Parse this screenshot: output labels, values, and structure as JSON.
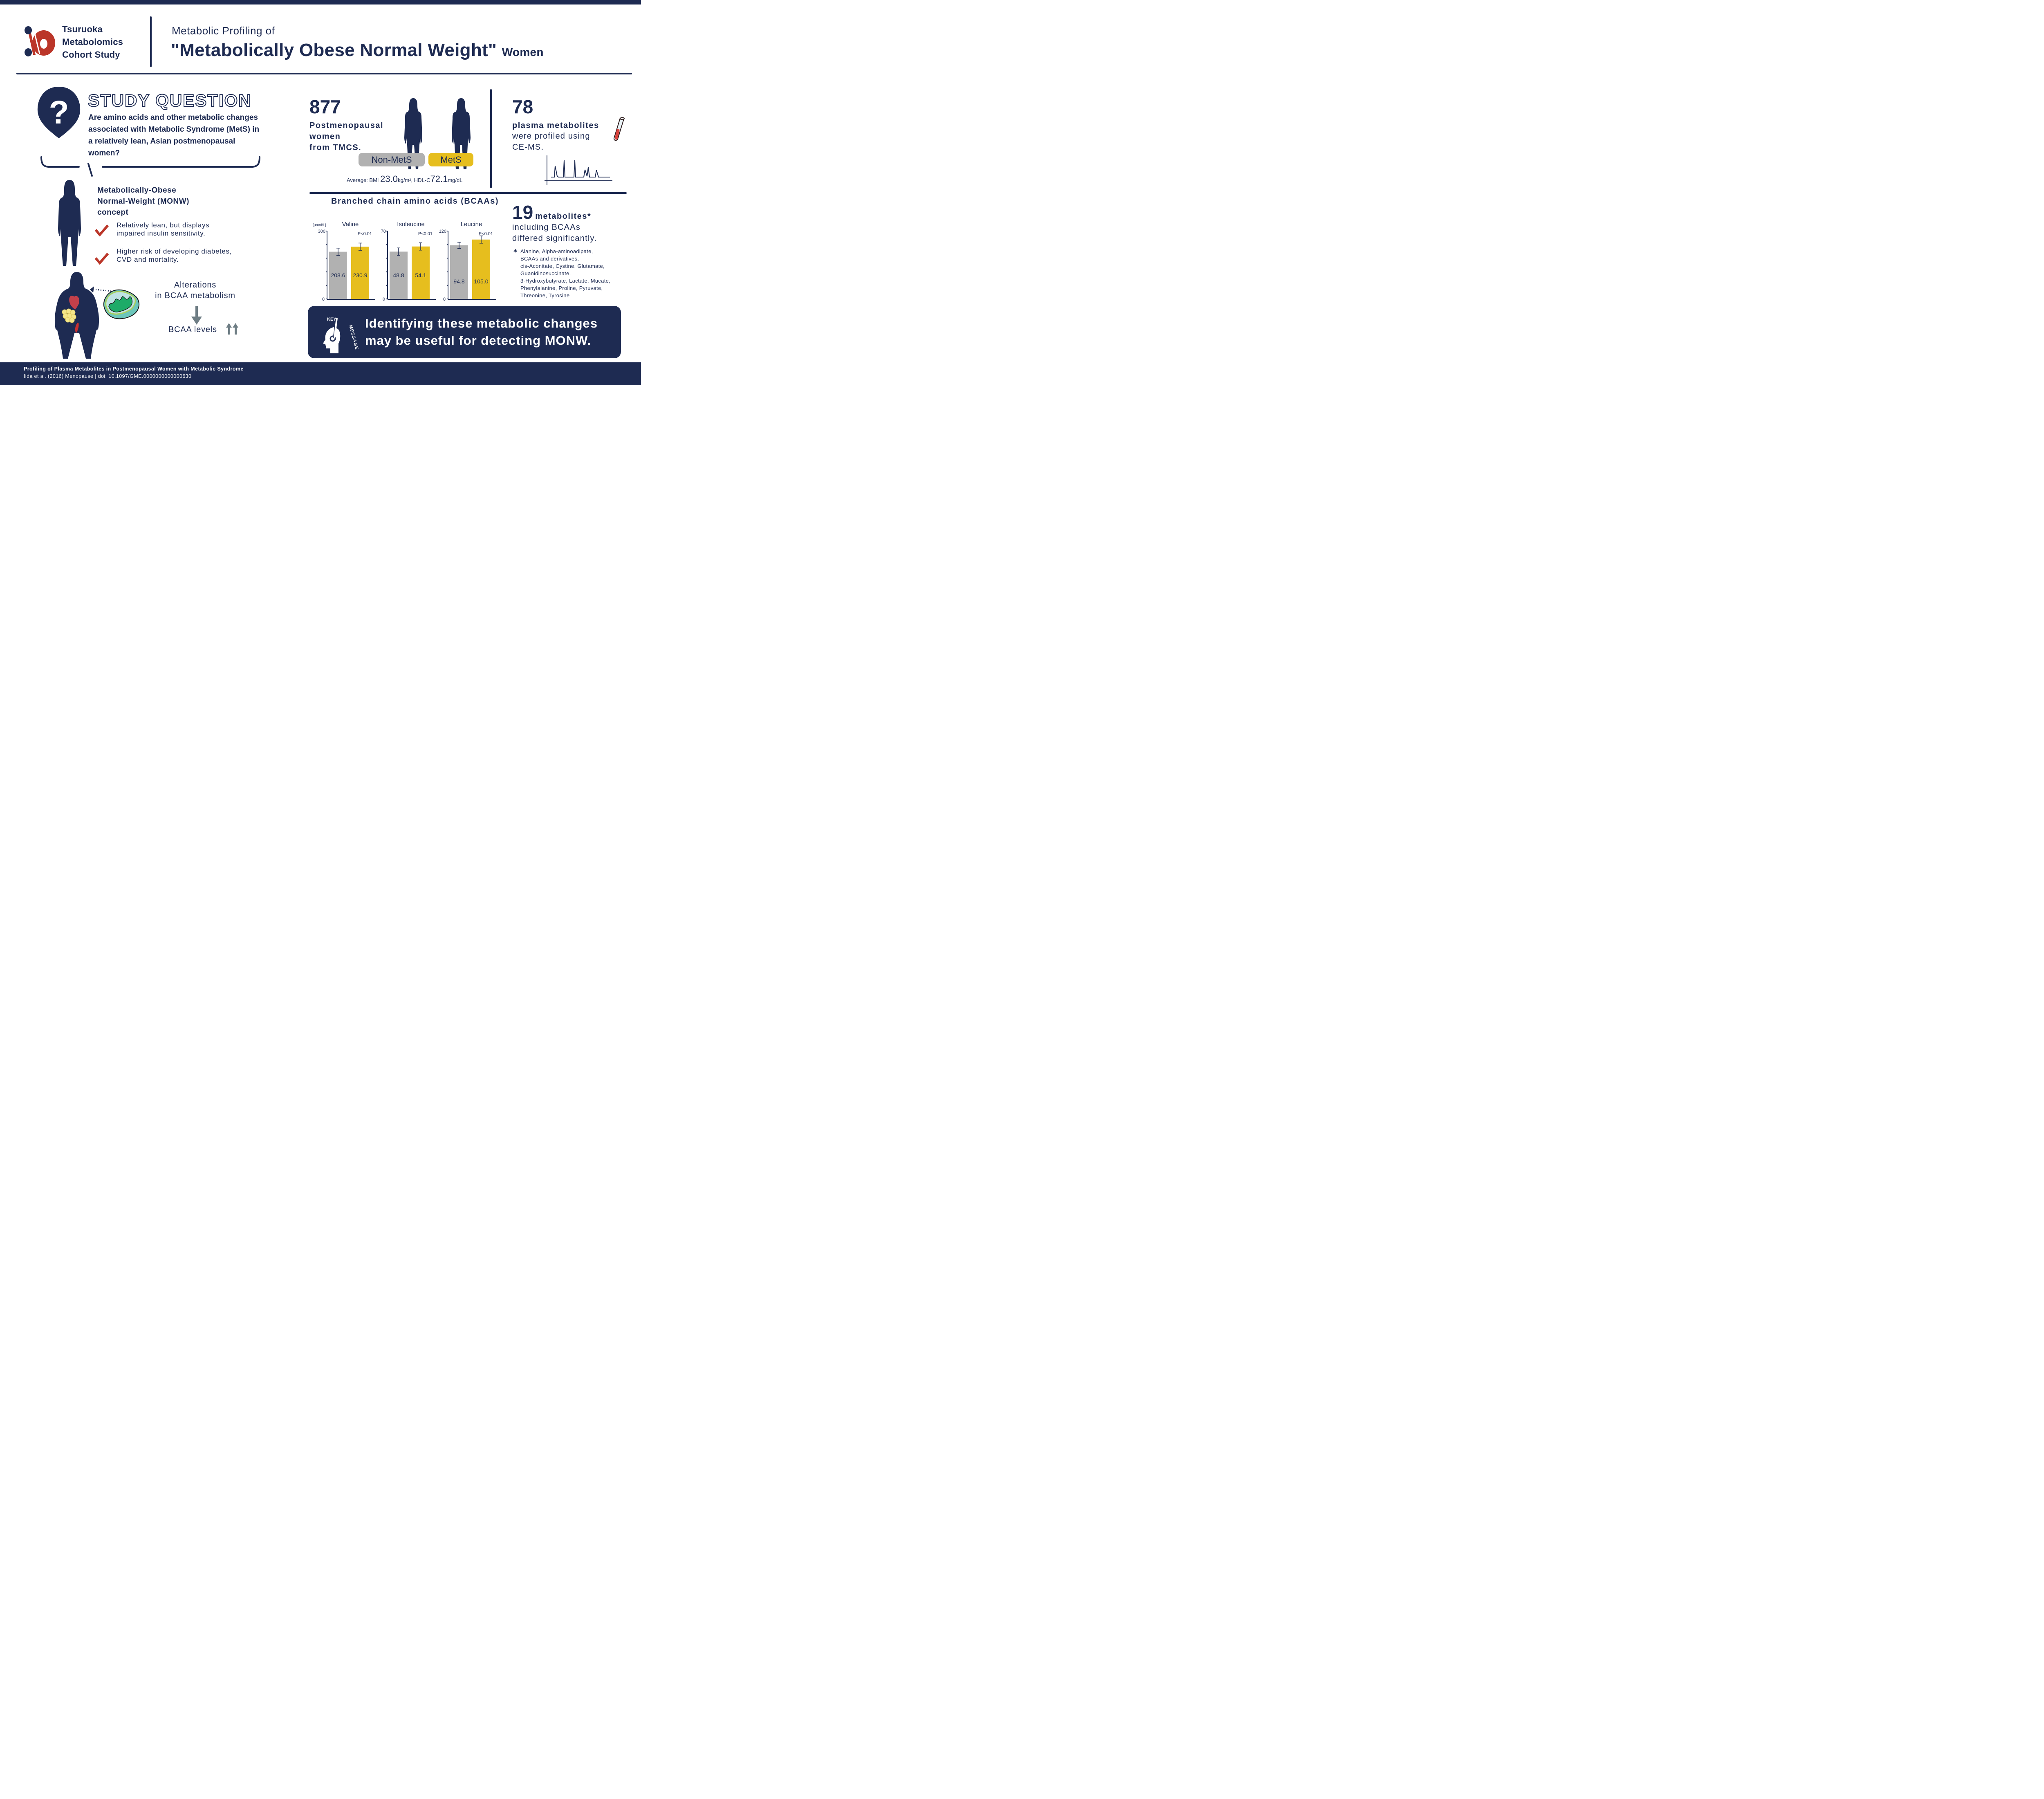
{
  "colors": {
    "navy": "#1e2b52",
    "grey": "#b1b1b1",
    "yellow": "#e6be1e",
    "red": "#bb3629",
    "arrow_grey": "#6e7d84"
  },
  "header": {
    "logo_lines": [
      "Tsuruoka",
      "Metabolomics",
      "Cohort Study"
    ],
    "title_sub": "Metabolic Profiling of",
    "title_main": "\"Metabolically Obese Normal Weight\"",
    "title_suffix": "Women"
  },
  "study_question": {
    "icon": "question-pin-icon",
    "heading": "STUDY QUESTION",
    "text": "Are amino acids and other metabolic changes associated with Metabolic Syndrome (MetS) in a relatively lean, Asian postmenopausal women?"
  },
  "monw": {
    "title_lines": [
      "Metabolically-Obese",
      "Normal-Weight (MONW)",
      "concept"
    ],
    "points": [
      {
        "icon": "check-icon",
        "lines": [
          "Relatively lean, but displays",
          "impaired insulin sensitivity."
        ]
      },
      {
        "icon": "check-icon",
        "lines": [
          "Higher risk of developing diabetes,",
          "CVD and mortality."
        ]
      }
    ]
  },
  "mechanism": {
    "icons": [
      "obese-body-icon",
      "heart-icon",
      "fat-cells-icon",
      "muscle-icon",
      "mitochondria-icon"
    ],
    "alteration_lines": [
      "Alterations",
      "in BCAA metabolism"
    ],
    "result": "BCAA levels"
  },
  "cohort": {
    "count": "877",
    "lines": [
      "Postmenopausal",
      "women",
      "from TMCS."
    ],
    "groups": [
      "Non-MetS",
      "MetS"
    ],
    "average_label": "Average:",
    "bmi_label": "BMI",
    "bmi_value": "23.0",
    "bmi_unit": "kg/m²,",
    "hdl_label": "HDL-C",
    "hdl_value": "72.1",
    "hdl_unit": "mg/dL"
  },
  "profiling": {
    "count": "78",
    "bold_line": "plasma metabolites",
    "lines": [
      "were profiled using",
      "CE-MS."
    ],
    "icons": [
      "test-tube-icon",
      "chromatogram-icon"
    ]
  },
  "significant": {
    "count": "19",
    "label": "metabolites*",
    "lines": [
      "including BCAAs",
      "differed significantly."
    ],
    "footnote_mark": "*",
    "footnote_lines": [
      "Alanine, Alpha-aminoadipate,",
      "BCAAs and derivatives,",
      "cis-Aconitate, Cystine, Glutamate,",
      "Guanidinosuccinate,",
      "3-Hydroxybutyrate, Lactate, Mucate,",
      "Phenylalanine, Proline, Pyruvate,",
      "Threonine, Tyrosine"
    ]
  },
  "chart_data": {
    "type": "bar",
    "title": "Branched chain amino acids (BCAAs)",
    "ylabel": "[μmol/L]",
    "series_names": [
      "Non-MetS",
      "MetS"
    ],
    "panels": [
      {
        "name": "Valine",
        "ylim": [
          0,
          300
        ],
        "yticks": [
          "0",
          "300"
        ],
        "values": [
          208.6,
          230.9
        ],
        "errors": [
          16,
          16
        ],
        "pvalue": "P<0.01"
      },
      {
        "name": "Isoleucine",
        "ylim": [
          0,
          70
        ],
        "yticks": [
          "0",
          "70"
        ],
        "values": [
          48.8,
          54.1
        ],
        "errors": [
          3.8,
          3.8
        ],
        "pvalue": "P<0.01"
      },
      {
        "name": "Leucine",
        "ylim": [
          0,
          120
        ],
        "yticks": [
          "0",
          "120"
        ],
        "values": [
          94.8,
          105.0
        ],
        "errors": [
          5.5,
          6.5
        ],
        "pvalue": "P<0.01"
      }
    ],
    "grid": false,
    "legend": "none"
  },
  "key_message": {
    "badge_top": "KEY",
    "badge_side": "MESSAGE",
    "lines": [
      "Identifying these metabolic changes",
      "may be useful for detecting MONW."
    ]
  },
  "footer": {
    "title": "Profiling of Plasma Metabolites in Postmenopausal Women with Metabolic Syndrome",
    "citation": "Iida et al. (2016) Menopause | doi: 10.1097/GME.0000000000000630"
  }
}
